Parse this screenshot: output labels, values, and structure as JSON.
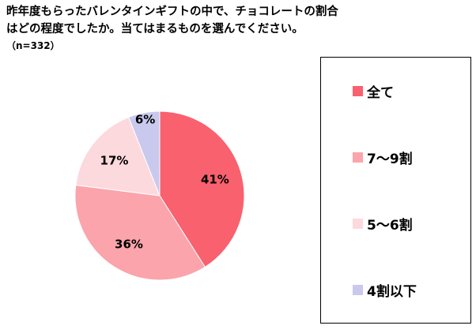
{
  "header": {
    "title_line1": "昨年度もらったバレンタインギフトの中で、チョコレートの割合",
    "title_line2": "はどの程度でしたか。当てはまるものを選んでください。",
    "sample_note": "（n=332）"
  },
  "chart_data": {
    "type": "pie",
    "title": "昨年度もらったバレンタインギフトの中で、チョコレートの割合はどの程度でしたか。当てはまるものを選んでください。",
    "sample_size_label": "（n=332）",
    "start_angle_deg": 0,
    "direction": "clockwise",
    "legend_position": "right",
    "slices": [
      {
        "label": "全て",
        "value": 41,
        "pct_label": "41%",
        "color": "#f9616e"
      },
      {
        "label": "7～9割",
        "value": 36,
        "pct_label": "36%",
        "color": "#fba4ab"
      },
      {
        "label": "5～6割",
        "value": 17,
        "pct_label": "17%",
        "color": "#fcd9dd"
      },
      {
        "label": "4割以下",
        "value": 6,
        "pct_label": "6%",
        "color": "#c9c9ee"
      }
    ]
  }
}
